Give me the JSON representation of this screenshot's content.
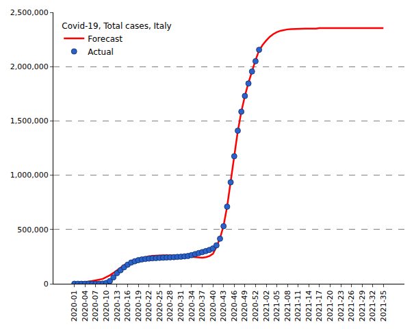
{
  "chart_data": {
    "type": "line",
    "title": "Covid-19, Total cases, Italy",
    "categories": [
      "2020-01",
      null,
      null,
      "2020-04",
      null,
      null,
      "2020-07",
      null,
      null,
      "2020-10",
      null,
      null,
      "2020-13",
      null,
      null,
      "2020-16",
      null,
      null,
      "2020-19",
      null,
      null,
      "2020-22",
      null,
      null,
      "2020-25",
      null,
      null,
      "2020-28",
      null,
      null,
      "2020-31",
      null,
      null,
      "2020-34",
      null,
      null,
      "2020-37",
      null,
      null,
      "2020-40",
      null,
      null,
      "2020-43",
      null,
      null,
      "2020-46",
      null,
      null,
      "2020-49",
      null,
      null,
      "2020-52",
      null,
      null,
      "2021-02",
      null,
      null,
      "2021-05",
      null,
      null,
      "2021-08",
      null,
      null,
      "2021-11",
      null,
      null,
      "2021-14",
      null,
      null,
      "2021-17",
      null,
      null,
      "2021-20",
      null,
      null,
      "2021-23",
      null,
      null,
      "2021-26",
      null,
      null,
      "2021-29",
      null,
      null,
      "2021-32",
      null,
      null,
      "2021-35"
    ],
    "series": [
      {
        "name": "Forecast",
        "type": "line",
        "color": "#ff0000",
        "line_style": "solid",
        "values": [
          5000,
          8000,
          12000,
          16000,
          20000,
          25000,
          30000,
          38000,
          45000,
          60000,
          78000,
          100000,
          125000,
          150000,
          172000,
          190000,
          205000,
          218000,
          228000,
          237000,
          245000,
          252000,
          257000,
          260000,
          262000,
          262000,
          262000,
          262000,
          260000,
          258000,
          256000,
          254000,
          252000,
          250000,
          248000,
          245000,
          240000,
          245000,
          255000,
          275000,
          340000,
          420000,
          535000,
          710000,
          935000,
          1175000,
          1405000,
          1585000,
          1730000,
          1850000,
          1960000,
          2060000,
          2150000,
          2200000,
          2240000,
          2275000,
          2300000,
          2318000,
          2330000,
          2338000,
          2343000,
          2346000,
          2348000,
          2350000,
          2350000,
          2350000,
          2350000,
          2350000,
          2350000,
          2355000,
          2355000,
          2355000,
          2355000,
          2355000,
          2355000,
          2355000,
          2355000,
          2355000,
          2355000,
          2355000,
          2355000,
          2355000,
          2355000,
          2355000,
          2355000,
          2355000,
          2355000,
          2355000
        ]
      },
      {
        "name": "Actual",
        "type": "scatter",
        "color": "#2a62c9",
        "marker": "circle",
        "values": [
          0,
          0,
          0,
          0,
          0,
          0,
          0,
          0,
          1700,
          7400,
          24700,
          59000,
          97700,
          124600,
          152000,
          175900,
          195300,
          207400,
          217200,
          223900,
          228600,
          232600,
          234800,
          236700,
          238800,
          240400,
          242100,
          243500,
          245000,
          247100,
          249200,
          252200,
          256100,
          263900,
          272900,
          282700,
          291400,
          300900,
          311400,
          325300,
          354000,
          415000,
          530000,
          710000,
          935000,
          1175000,
          1410000,
          1585000,
          1730000,
          1845000,
          1955000,
          2050000,
          2155000,
          null,
          null,
          null,
          null,
          null,
          null,
          null,
          null,
          null,
          null,
          null,
          null,
          null,
          null,
          null,
          null,
          null,
          null,
          null,
          null,
          null,
          null,
          null,
          null,
          null,
          null,
          null,
          null,
          null,
          null,
          null,
          null,
          null,
          null,
          null
        ]
      }
    ],
    "ylim": [
      0,
      2500000
    ],
    "yticks": [
      0,
      {
        "value": 500000,
        "label": "500,000"
      },
      {
        "value": 1000000,
        "label": "1,000,000"
      },
      {
        "value": 1500000,
        "label": "1,500,000"
      },
      {
        "value": 2000000,
        "label": "2,000,000"
      },
      {
        "value": 2500000,
        "label": "2,500,000"
      }
    ],
    "grid": true,
    "legend": "upper left"
  }
}
